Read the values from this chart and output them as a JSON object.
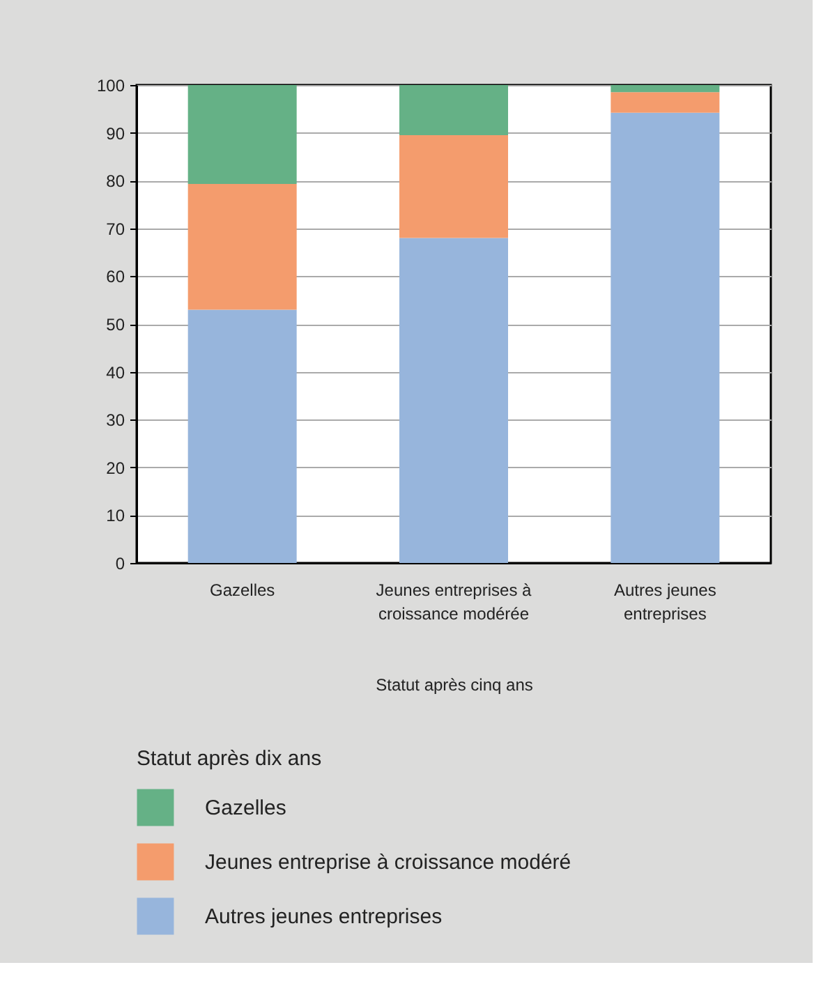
{
  "chart_data": {
    "type": "bar",
    "stacked": true,
    "xlabel": "Statut après cinq ans",
    "legend_title": "Statut après dix ans",
    "categories": [
      "Gazelles",
      "Jeunes entreprises à croissance modérée",
      "Autres jeunes entreprises"
    ],
    "series": [
      {
        "name": "Autres jeunes entreprises",
        "color": "#97b5dc",
        "values": [
          53,
          68,
          94.2
        ]
      },
      {
        "name": "Jeunes entreprise à croissance modéré",
        "color": "#f49c6d",
        "values": [
          26.3,
          21.5,
          4.3
        ]
      },
      {
        "name": "Gazelles",
        "color": "#65b186",
        "values": [
          20.7,
          10.5,
          1.5
        ]
      }
    ],
    "ylim": [
      0,
      100
    ],
    "yticks": [
      0,
      10,
      20,
      30,
      40,
      50,
      60,
      70,
      80,
      90,
      100
    ],
    "grid": "y",
    "legend": "bottom"
  }
}
